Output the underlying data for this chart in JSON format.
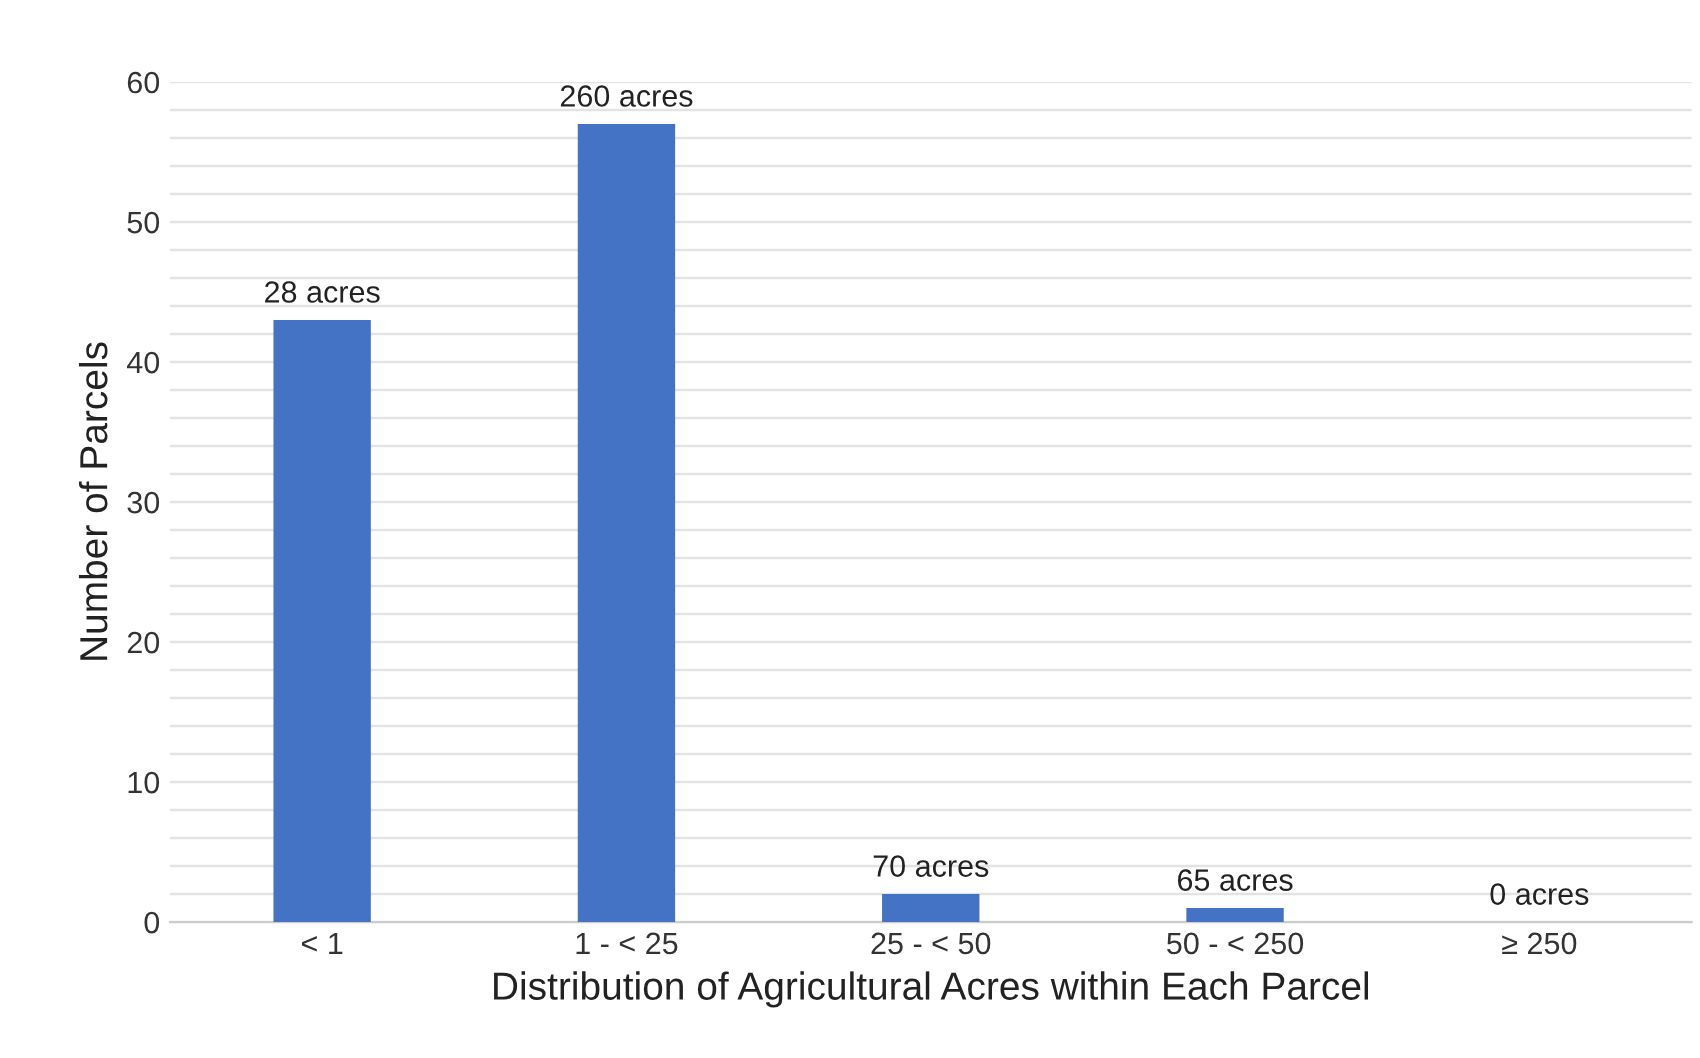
{
  "chart_data": {
    "type": "bar",
    "xlabel": "Distribution of Agricultural Acres within Each Parcel",
    "ylabel": "Number of Parcels",
    "categories": [
      "< 1",
      "1 - < 25",
      "25 - < 50",
      "50 - < 250",
      "≥ 250"
    ],
    "values": [
      43,
      57,
      2,
      1,
      0
    ],
    "color": "#4472c4",
    "annotations": [
      {
        "text": "28 acres",
        "x": "< 1",
        "y": 43
      },
      {
        "text": "260 acres",
        "x": "1 - < 25",
        "y": 57
      },
      {
        "text": "70 acres",
        "x": "25 - < 50",
        "y": 2
      },
      {
        "text": "65 acres",
        "x": "50 - < 250",
        "y": 1
      },
      {
        "text": "0 acres",
        "x": "≥ 250",
        "y": 0
      }
    ],
    "ylim": [
      0,
      60
    ],
    "yticks": [
      0,
      {
        "value": 2,
        "label": null
      },
      {
        "value": 4,
        "label": null
      },
      {
        "value": 6,
        "label": null
      },
      {
        "value": 8,
        "label": null
      },
      10,
      {
        "value": 12,
        "label": null
      },
      {
        "value": 14,
        "label": null
      },
      {
        "value": 16,
        "label": null
      },
      {
        "value": 18,
        "label": null
      },
      20,
      {
        "value": 22,
        "label": null
      },
      {
        "value": 24,
        "label": null
      },
      {
        "value": 26,
        "label": null
      },
      {
        "value": 28,
        "label": null
      },
      30,
      {
        "value": 32,
        "label": null
      },
      {
        "value": 34,
        "label": null
      },
      {
        "value": 36,
        "label": null
      },
      {
        "value": 38,
        "label": null
      },
      40,
      {
        "value": 42,
        "label": null
      },
      {
        "value": 44,
        "label": null
      },
      {
        "value": 46,
        "label": null
      },
      {
        "value": 48,
        "label": null
      },
      50,
      {
        "value": 52,
        "label": null
      },
      {
        "value": 54,
        "label": null
      },
      {
        "value": 56,
        "label": null
      },
      {
        "value": 58,
        "label": null
      },
      60
    ],
    "grid": "y"
  }
}
